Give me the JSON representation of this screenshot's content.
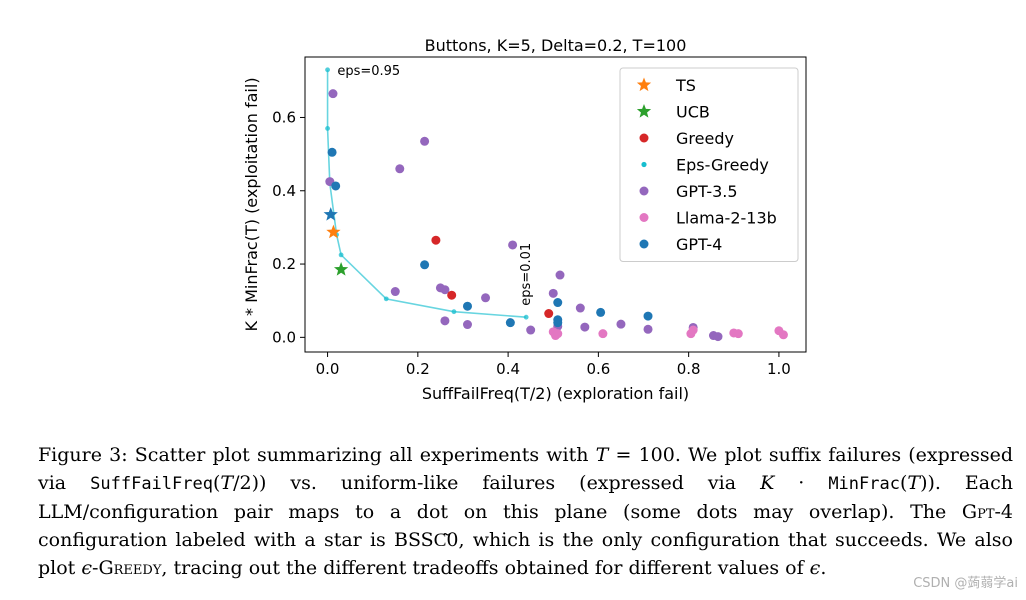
{
  "chart_data": {
    "type": "scatter",
    "title": "Buttons, K=5, Delta=0.2, T=100",
    "xlabel": "SuffFailFreq(T/2) (exploration fail)",
    "ylabel": "K * MinFrac(T) (exploitation fail)",
    "xlim": [
      -0.05,
      1.06
    ],
    "ylim": [
      -0.04,
      0.765
    ],
    "xticks": [
      0.0,
      0.2,
      0.4,
      0.6,
      0.8,
      1.0
    ],
    "xtick_labels": [
      "0.0",
      "0.2",
      "0.4",
      "0.6",
      "0.8",
      "1.0"
    ],
    "yticks": [
      0.0,
      0.2,
      0.4,
      0.6
    ],
    "ytick_labels": [
      "0.0",
      "0.2",
      "0.4",
      "0.6"
    ],
    "legend_position": "top-right",
    "annotations": [
      {
        "text": "eps=0.95",
        "x": 0.015,
        "y": 0.73,
        "rotation": 0
      },
      {
        "text": "eps=0.01",
        "x": 0.44,
        "y": 0.07,
        "rotation": -90
      }
    ],
    "series": [
      {
        "name": "TS",
        "marker": "star",
        "color": "#ff7f0e",
        "points": [
          [
            0.013,
            0.287
          ]
        ]
      },
      {
        "name": "UCB",
        "marker": "star",
        "color": "#2ca02c",
        "points": [
          [
            0.03,
            0.185
          ]
        ]
      },
      {
        "name": "Greedy",
        "marker": "dot",
        "color": "#d62728",
        "points": [
          [
            0.24,
            0.265
          ],
          [
            0.275,
            0.115
          ],
          [
            0.49,
            0.065
          ]
        ]
      },
      {
        "name": "Eps-Greedy",
        "marker": "small-dot-line",
        "color": "#17becf",
        "points": [
          [
            0.0,
            0.73
          ],
          [
            0.0,
            0.57
          ],
          [
            0.005,
            0.42
          ],
          [
            0.02,
            0.28
          ],
          [
            0.03,
            0.225
          ],
          [
            0.13,
            0.105
          ],
          [
            0.28,
            0.07
          ],
          [
            0.44,
            0.055
          ]
        ]
      },
      {
        "name": "GPT-3.5",
        "marker": "dot",
        "color": "#9467bd",
        "points": [
          [
            0.012,
            0.665
          ],
          [
            0.215,
            0.535
          ],
          [
            0.16,
            0.46
          ],
          [
            0.005,
            0.425
          ],
          [
            0.41,
            0.252
          ],
          [
            0.515,
            0.17
          ],
          [
            0.15,
            0.125
          ],
          [
            0.25,
            0.135
          ],
          [
            0.26,
            0.13
          ],
          [
            0.35,
            0.108
          ],
          [
            0.5,
            0.12
          ],
          [
            0.56,
            0.08
          ],
          [
            0.26,
            0.045
          ],
          [
            0.31,
            0.035
          ],
          [
            0.45,
            0.02
          ],
          [
            0.51,
            0.03
          ],
          [
            0.57,
            0.028
          ],
          [
            0.65,
            0.036
          ],
          [
            0.71,
            0.022
          ],
          [
            0.81,
            0.027
          ],
          [
            0.855,
            0.005
          ],
          [
            0.865,
            0.002
          ]
        ]
      },
      {
        "name": "Llama-2-13b",
        "marker": "dot",
        "color": "#e377c2",
        "points": [
          [
            0.5,
            0.015
          ],
          [
            0.505,
            0.005
          ],
          [
            0.51,
            0.01
          ],
          [
            0.61,
            0.01
          ],
          [
            0.805,
            0.01
          ],
          [
            0.81,
            0.02
          ],
          [
            0.9,
            0.012
          ],
          [
            0.91,
            0.01
          ],
          [
            1.0,
            0.018
          ],
          [
            1.01,
            0.007
          ]
        ]
      },
      {
        "name": "GPT-4",
        "marker": "dot",
        "color": "#1f77b4",
        "points": [
          [
            0.01,
            0.505
          ],
          [
            0.018,
            0.413
          ],
          [
            0.215,
            0.198
          ],
          [
            0.31,
            0.085
          ],
          [
            0.51,
            0.095
          ],
          [
            0.51,
            0.048
          ],
          [
            0.605,
            0.068
          ],
          [
            0.71,
            0.058
          ],
          [
            0.405,
            0.04
          ],
          [
            0.51,
            0.04
          ]
        ]
      },
      {
        "name": "GPT-4 (BSSC0)",
        "marker": "star",
        "color": "#1f77b4",
        "in_legend": false,
        "points": [
          [
            0.007,
            0.335
          ]
        ]
      }
    ]
  },
  "caption": {
    "fig_label": "Figure 3:",
    "s1": "Scatter plot summarizing all experiments with",
    "s2_var": "T",
    "s3": "= 100.  We plot suffix failures (expressed via",
    "s4_mono": "SuffFailFreq",
    "s5": "(",
    "s6_var": "T",
    "s7": "/2)) vs.  uniform-like failures (expressed via",
    "s8_var": "K",
    "s9": "·",
    "s10_mono": "MinFrac",
    "s11": "(",
    "s12_var": "T",
    "s13": ")).  Each LLM/configuration pair maps to a dot on this plane (some dots may overlap). The",
    "s14_sc": "Gpt-4",
    "s15": "configuration labeled with a star is BSS",
    "s16": "C͂0",
    "s17": ", which is the only configuration that succeeds. We also plot",
    "s18_var": "ϵ",
    "s19_sc": "-Greedy",
    "s20": ", tracing out the different tradeoffs obtained for different values of",
    "s21_var": "ϵ",
    "s22": "."
  },
  "watermark": "CSDN @蒟蒻学ai"
}
